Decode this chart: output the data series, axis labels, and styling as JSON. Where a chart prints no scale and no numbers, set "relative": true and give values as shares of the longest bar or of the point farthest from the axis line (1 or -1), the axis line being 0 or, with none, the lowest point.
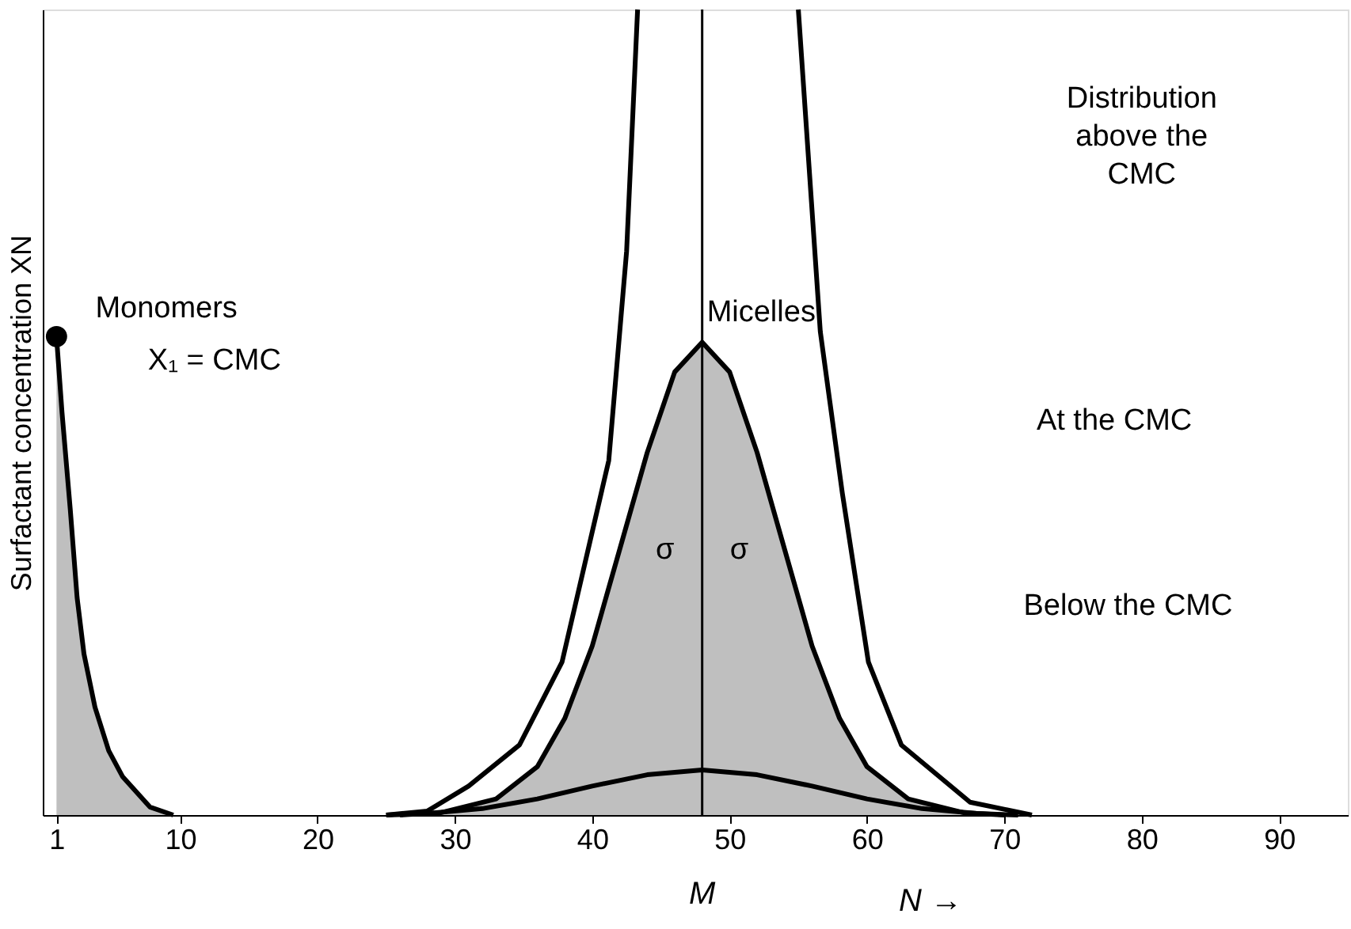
{
  "chart_data": {
    "type": "line",
    "relative": true,
    "xlabel": "N →",
    "ylabel": "Surfactant concentration XN",
    "xlim": [
      0,
      95
    ],
    "xticks": [
      1,
      10,
      20,
      30,
      40,
      50,
      60,
      70,
      80,
      90
    ],
    "grid": false,
    "series": [
      {
        "type": "area",
        "color": "#000000",
        "x": [
          1,
          1.4,
          2,
          2.5,
          3,
          3.8,
          4.8,
          5.8,
          7.8,
          9.5
        ],
        "values": [
          0.594,
          0.5,
          0.38,
          0.27,
          0.2,
          0.134,
          0.08,
          0.048,
          0.01,
          0
        ]
      },
      {
        "type": "scatter",
        "marker": "circle",
        "color": "#000000",
        "x": [
          1
        ],
        "values": [
          0.594
        ]
      },
      {
        "type": "area",
        "color": "#000000",
        "x": [
          26,
          29,
          33,
          36,
          38,
          40,
          42,
          44,
          46,
          48,
          50,
          52,
          54,
          56,
          58,
          60,
          63,
          67,
          70
        ],
        "values": [
          0,
          0.003,
          0.02,
          0.06,
          0.12,
          0.21,
          0.33,
          0.45,
          0.55,
          0.587,
          0.55,
          0.45,
          0.33,
          0.21,
          0.12,
          0.06,
          0.02,
          0.003,
          0
        ]
      },
      {
        "color": "#000000",
        "x": [
          25,
          28,
          32,
          36,
          40,
          44,
          48,
          52,
          56,
          60,
          64,
          68,
          71
        ],
        "values": [
          0,
          0.002,
          0.008,
          0.02,
          0.036,
          0.05,
          0.056,
          0.05,
          0.036,
          0.02,
          0.008,
          0.002,
          0
        ]
      },
      {
        "color": "#000000",
        "x": [
          25,
          28,
          31,
          34.7,
          37.8,
          41.2,
          42.5,
          43.3,
          49,
          55,
          56.6,
          58.2,
          60.1,
          62.5,
          67.5,
          72
        ],
        "values": [
          0,
          0.005,
          0.036,
          0.087,
          0.19,
          0.44,
          0.7,
          1,
          null,
          1,
          0.6,
          0.4,
          0.19,
          0.087,
          0.016,
          0
        ]
      }
    ],
    "ref_lines": [
      {
        "axis": "x",
        "value": 48,
        "label": "M",
        "color": "#000000"
      }
    ],
    "annotations": [
      "Monomers",
      "X₁ = CMC",
      "Micelles",
      "Distribution\nabove the\nCMC",
      "At the CMC",
      "Below the CMC",
      "σ",
      "σ"
    ]
  }
}
